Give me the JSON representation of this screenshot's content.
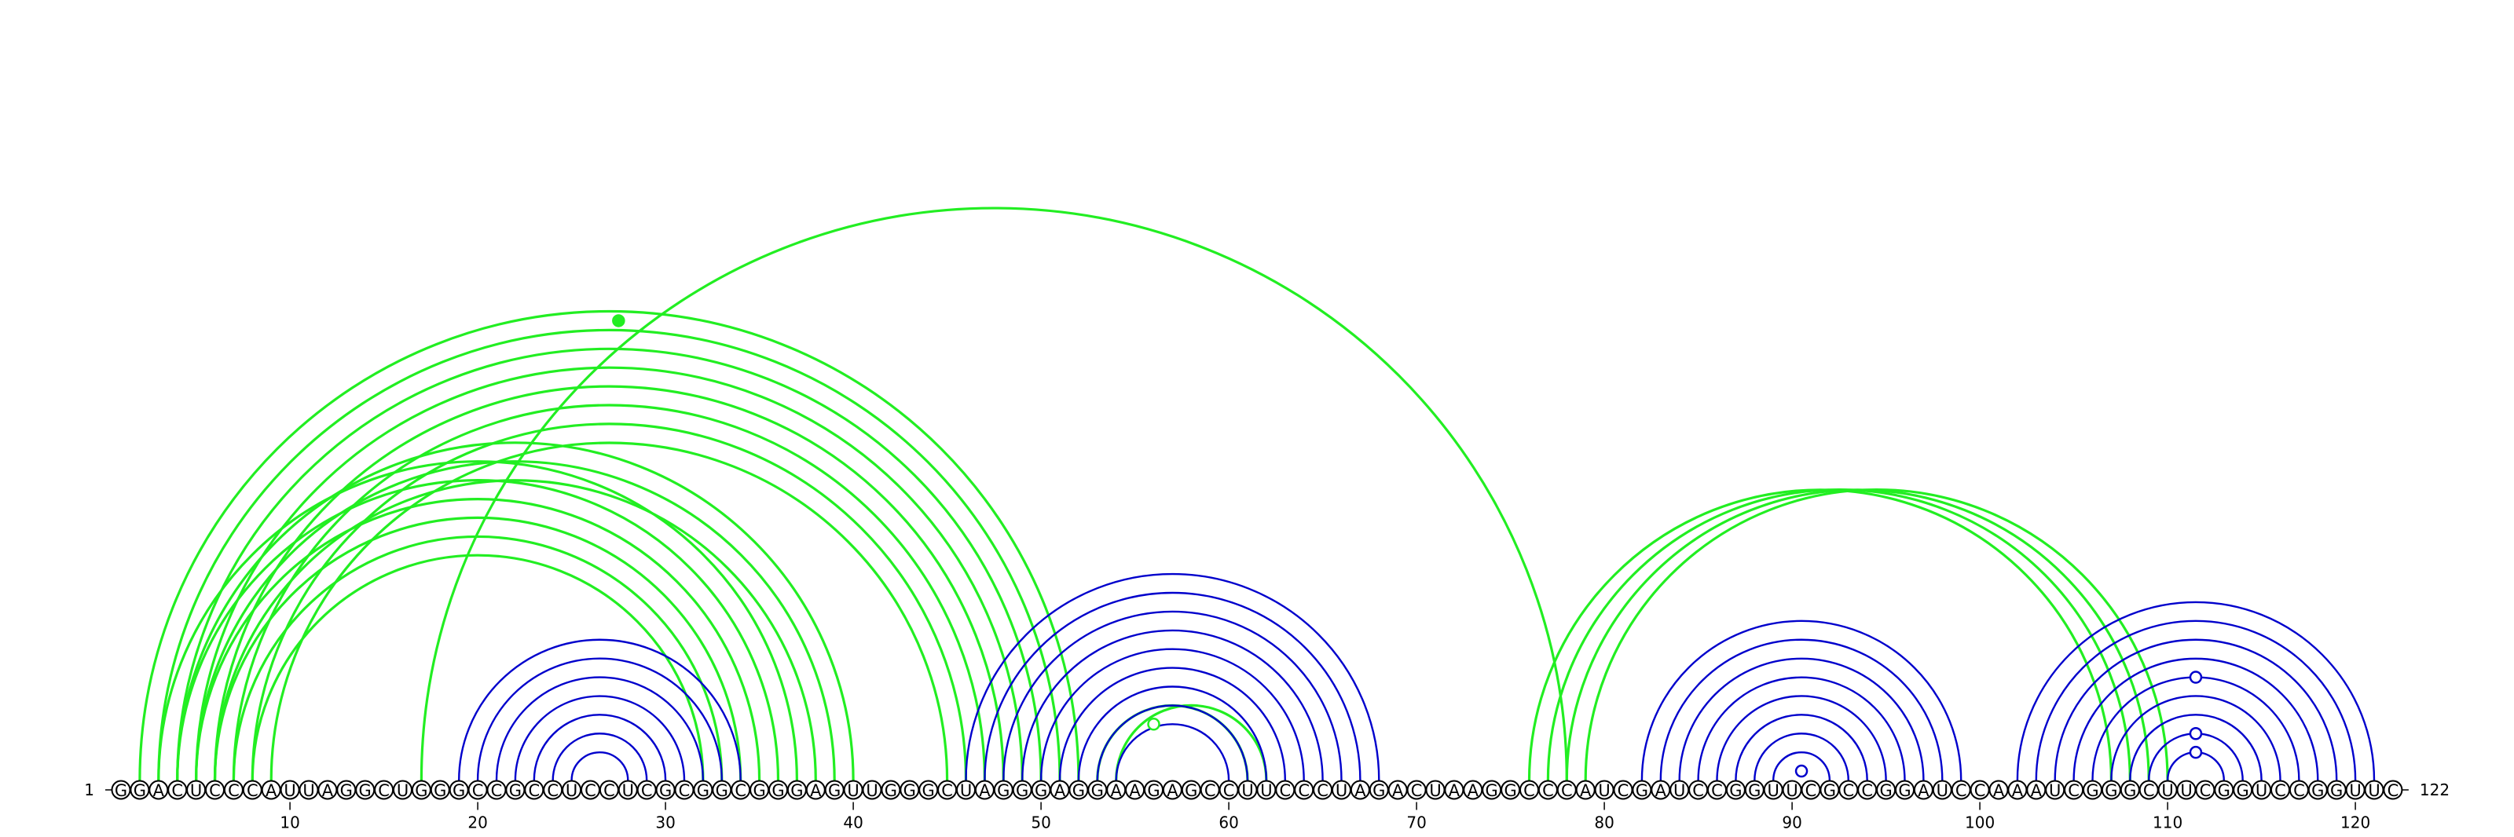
{
  "diagram": {
    "type": "rna-arc-diagram",
    "sequence": "GGACUCCCAUUAGGCUGGGCCGCCUCCUCGCGGCGGGAGUUGGGCUAGGGAGGAAGAGCCUUCCCUAGACUAAGGCCCAUCGAUCCGGUUCGCCGGAUCCAAAUCGGGCUUCGGUCCGGUUC",
    "length": 122,
    "start_label": "1",
    "end_label": "122",
    "tick_labels": [
      "10",
      "20",
      "30",
      "40",
      "50",
      "60",
      "70",
      "80",
      "90",
      "100",
      "110",
      "120"
    ],
    "colors": {
      "green": "#22ee22",
      "blue": "#0000cc"
    },
    "helices": [
      {
        "color": "green",
        "pairs": [
          [
            3,
            37
          ],
          [
            4,
            36
          ],
          [
            5,
            35
          ],
          [
            6,
            34
          ],
          [
            7,
            33
          ],
          [
            8,
            32
          ]
        ]
      },
      {
        "color": "green",
        "pairs": [
          [
            3,
            51
          ],
          [
            4,
            50
          ],
          [
            5,
            49
          ],
          [
            6,
            48
          ],
          [
            7,
            47
          ],
          [
            8,
            46
          ],
          [
            9,
            45
          ]
        ]
      },
      {
        "color": "green",
        "pairs": [
          [
            2,
            52
          ],
          [
            4,
            40
          ],
          [
            5,
            39
          ],
          [
            6,
            38
          ]
        ]
      },
      {
        "color": "green",
        "pairs": [
          [
            17,
            78
          ]
        ]
      },
      {
        "color": "green",
        "pairs": [
          [
            54,
            62
          ],
          [
            53,
            61
          ]
        ]
      },
      {
        "color": "green",
        "pairs": [
          [
            76,
            107
          ],
          [
            77,
            108
          ],
          [
            78,
            109
          ],
          [
            79,
            110
          ]
        ]
      },
      {
        "color": "blue",
        "pairs": [
          [
            19,
            34
          ],
          [
            20,
            33
          ],
          [
            21,
            32
          ],
          [
            22,
            31
          ],
          [
            23,
            30
          ],
          [
            24,
            29
          ],
          [
            25,
            28
          ]
        ]
      },
      {
        "color": "blue",
        "pairs": [
          [
            46,
            68
          ],
          [
            47,
            67
          ],
          [
            48,
            66
          ],
          [
            49,
            65
          ],
          [
            50,
            64
          ],
          [
            51,
            63
          ],
          [
            52,
            62
          ],
          [
            53,
            61
          ],
          [
            54,
            60
          ]
        ]
      },
      {
        "color": "blue",
        "pairs": [
          [
            82,
            99
          ],
          [
            83,
            98
          ],
          [
            84,
            97
          ],
          [
            85,
            96
          ],
          [
            86,
            95
          ],
          [
            87,
            94
          ],
          [
            88,
            93
          ],
          [
            89,
            92
          ]
        ]
      },
      {
        "color": "blue",
        "pairs": [
          [
            102,
            121
          ],
          [
            103,
            120
          ],
          [
            104,
            119
          ],
          [
            105,
            118
          ],
          [
            106,
            117
          ],
          [
            107,
            116
          ],
          [
            108,
            115
          ],
          [
            109,
            114
          ],
          [
            110,
            113
          ]
        ]
      }
    ],
    "markers": [
      {
        "pair": [
          3,
          52
        ],
        "color": "green",
        "filled": true
      },
      {
        "pair": [
          53,
          59
        ],
        "color": "green",
        "filled": false
      },
      {
        "pair": [
          90,
          91
        ],
        "color": "blue",
        "filled": false
      },
      {
        "pair": [
          110,
          113
        ],
        "color": "blue",
        "filled": false
      },
      {
        "pair": [
          109,
          114
        ],
        "color": "blue",
        "filled": false
      },
      {
        "pair": [
          106,
          117
        ],
        "color": "blue",
        "filled": false
      }
    ]
  }
}
